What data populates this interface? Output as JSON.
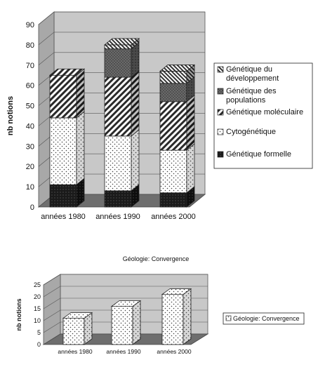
{
  "chart_data": [
    {
      "type": "bar",
      "stacked": true,
      "three_d": true,
      "title": "",
      "ylabel": "nb notions",
      "xlabel": "",
      "ylim": [
        0,
        90
      ],
      "yticks": [
        0,
        10,
        20,
        30,
        40,
        50,
        60,
        70,
        80,
        90
      ],
      "grid": true,
      "legend": "right",
      "categories": [
        "années 1980",
        "années 1990",
        "années 2000"
      ],
      "series": [
        {
          "name": "Génétique formelle",
          "pattern": "solid-dark",
          "values": [
            11,
            8,
            7
          ]
        },
        {
          "name": "Cytogénétique",
          "pattern": "dots",
          "values": [
            33,
            27,
            21
          ]
        },
        {
          "name": "Génétique moléculaire",
          "pattern": "diagonal-hatch",
          "values": [
            21,
            29,
            24
          ]
        },
        {
          "name": "Génétique des populations",
          "pattern": "dark-dots",
          "values": [
            0,
            14,
            9
          ]
        },
        {
          "name": "Génétique du développement",
          "pattern": "diagonal-dense",
          "values": [
            0,
            2,
            6
          ]
        }
      ]
    },
    {
      "type": "bar",
      "three_d": true,
      "title": "Géologie: Convergence",
      "ylabel": "nb notions",
      "xlabel": "",
      "ylim": [
        0,
        25
      ],
      "yticks": [
        0,
        5,
        10,
        15,
        20,
        25
      ],
      "grid": true,
      "legend": "right",
      "categories": [
        "années 1980",
        "années 1990",
        "années 2000"
      ],
      "series": [
        {
          "name": "Géologie: Convergence",
          "pattern": "dots",
          "values": [
            11,
            16,
            21
          ]
        }
      ]
    }
  ]
}
